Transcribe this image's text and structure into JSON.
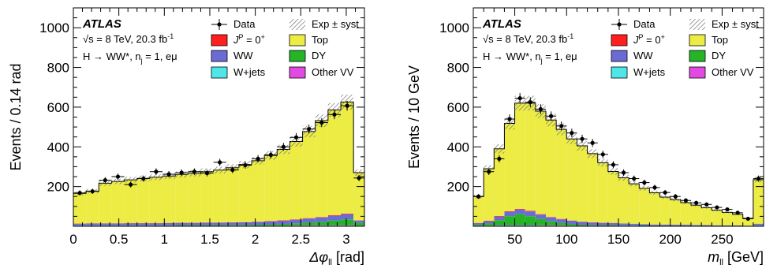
{
  "colors": {
    "data": "#000000",
    "top": "#ecec45",
    "ww": "#6b6bd6",
    "wjets": "#4ee6e6",
    "signal": "#ff1f1f",
    "dy": "#25b425",
    "othervv": "#e24ae2",
    "syst": "#7a7a7a"
  },
  "chart_data": [
    {
      "type": "histogram",
      "ylabel": "Events / 0.14 rad",
      "xlabel_main": "Δφ",
      "xlabel_sub": "ll",
      "xlabel_unit": " [rad]",
      "xlim": [
        0,
        3.2
      ],
      "ylim": [
        0,
        1100
      ],
      "xticks": [
        0,
        0.5,
        1,
        1.5,
        2,
        2.5,
        3
      ],
      "xtick_labels": [
        "0",
        "0.5",
        "1",
        "1.5",
        "2",
        "2.5",
        "3"
      ],
      "yticks": [
        200,
        400,
        600,
        800,
        1000
      ],
      "ytick_labels": [
        "200",
        "400",
        "600",
        "800",
        "1000"
      ],
      "grid": false,
      "legend_position": "top",
      "annotations": {
        "experiment": "ATLAS",
        "energy_prefix": "√s = 8 TeV, 20.3 fb",
        "energy_sup": "-1",
        "process_prefix": "H → WW*, n",
        "process_sub": "j",
        "process_suffix": " = 1, eμ"
      },
      "legend": {
        "data": "Data",
        "syst": "Exp ± syst",
        "signal_main": "J",
        "signal_sup1": "P",
        "signal_mid": " = 0",
        "signal_sup2": "+",
        "top": "Top",
        "ww": "WW",
        "dy": "DY",
        "wjets": "W+jets",
        "othervv": "Other VV"
      },
      "bin_edges": [
        0,
        0.14,
        0.28,
        0.42,
        0.56,
        0.7,
        0.84,
        0.98,
        1.12,
        1.26,
        1.4,
        1.54,
        1.68,
        1.82,
        1.96,
        2.1,
        2.24,
        2.38,
        2.52,
        2.66,
        2.8,
        2.94,
        3.08,
        3.2
      ],
      "stack_order": [
        "wjets",
        "othervv",
        "dy",
        "ww",
        "signal",
        "top"
      ],
      "series": [
        {
          "key": "wjets",
          "values": [
            2,
            2,
            2,
            2,
            2,
            2,
            2,
            2,
            2,
            2,
            2,
            2,
            2,
            2,
            2,
            3,
            3,
            3,
            3,
            3,
            3,
            3,
            2
          ]
        },
        {
          "key": "othervv",
          "values": [
            1,
            1,
            1,
            1,
            1,
            1,
            1,
            1,
            1,
            1,
            1,
            1,
            1,
            1,
            1,
            1,
            1,
            2,
            2,
            2,
            2,
            2,
            1
          ]
        },
        {
          "key": "dy",
          "values": [
            2,
            2,
            2,
            2,
            2,
            2,
            2,
            2,
            3,
            3,
            3,
            3,
            4,
            4,
            5,
            6,
            8,
            10,
            14,
            18,
            24,
            30,
            14
          ]
        },
        {
          "key": "ww",
          "values": [
            8,
            9,
            9,
            9,
            10,
            10,
            10,
            11,
            11,
            11,
            12,
            12,
            12,
            13,
            14,
            15,
            16,
            18,
            20,
            22,
            24,
            26,
            12
          ]
        },
        {
          "key": "signal",
          "values": [
            1,
            1,
            1,
            1,
            1,
            1,
            1,
            1,
            1,
            1,
            1,
            1,
            1,
            1,
            1,
            2,
            2,
            2,
            2,
            2,
            3,
            3,
            1
          ]
        },
        {
          "key": "top",
          "values": [
            152,
            162,
            202,
            211,
            218,
            225,
            231,
            236,
            243,
            249,
            256,
            264,
            275,
            290,
            307,
            330,
            357,
            392,
            436,
            485,
            530,
            562,
            240
          ]
        }
      ],
      "data_points": [
        168,
        176,
        232,
        250,
        210,
        240,
        275,
        262,
        270,
        275,
        268,
        322,
        284,
        308,
        340,
        360,
        400,
        448,
        490,
        522,
        563,
        607,
        243
      ],
      "syst_fraction": 0.06
    },
    {
      "type": "histogram",
      "ylabel": "Events / 10 GeV",
      "xlabel_main": "m",
      "xlabel_sub": "ll",
      "xlabel_unit": " [GeV]",
      "xlim": [
        10,
        290
      ],
      "ylim": [
        0,
        1100
      ],
      "xticks": [
        50,
        100,
        150,
        200,
        250
      ],
      "xtick_labels": [
        "50",
        "100",
        "150",
        "200",
        "250"
      ],
      "yticks": [
        200,
        400,
        600,
        800,
        1000
      ],
      "ytick_labels": [
        "200",
        "400",
        "600",
        "800",
        "1000"
      ],
      "grid": false,
      "legend_position": "top",
      "annotations": {
        "experiment": "ATLAS",
        "energy_prefix": "√s = 8 TeV, 20.3 fb",
        "energy_sup": "-1",
        "process_prefix": "H → WW*, n",
        "process_sub": "j",
        "process_suffix": " = 1, eμ"
      },
      "legend": {
        "data": "Data",
        "syst": "Exp ± syst",
        "signal_main": "J",
        "signal_sup1": "P",
        "signal_mid": " = 0",
        "signal_sup2": "+",
        "top": "Top",
        "ww": "WW",
        "dy": "DY",
        "wjets": "W+jets",
        "othervv": "Other VV"
      },
      "bin_edges": [
        10,
        20,
        30,
        40,
        50,
        60,
        70,
        80,
        90,
        100,
        110,
        120,
        130,
        140,
        150,
        160,
        170,
        180,
        190,
        200,
        210,
        220,
        230,
        240,
        250,
        260,
        270,
        280,
        290
      ],
      "stack_order": [
        "wjets",
        "othervv",
        "dy",
        "ww",
        "signal",
        "top"
      ],
      "series": [
        {
          "key": "wjets",
          "values": [
            2,
            3,
            4,
            4,
            4,
            4,
            3,
            3,
            3,
            3,
            2,
            2,
            2,
            2,
            2,
            2,
            1,
            1,
            1,
            1,
            1,
            1,
            1,
            1,
            1,
            1,
            1,
            2
          ]
        },
        {
          "key": "othervv",
          "values": [
            1,
            1,
            2,
            2,
            2,
            2,
            2,
            2,
            2,
            1,
            1,
            1,
            1,
            1,
            1,
            1,
            1,
            1,
            1,
            1,
            1,
            1,
            0,
            0,
            0,
            0,
            0,
            1
          ]
        },
        {
          "key": "dy",
          "values": [
            5,
            10,
            25,
            45,
            55,
            45,
            32,
            20,
            12,
            8,
            5,
            4,
            3,
            3,
            2,
            2,
            2,
            1,
            1,
            1,
            1,
            1,
            1,
            1,
            0,
            0,
            0,
            2
          ]
        },
        {
          "key": "ww",
          "values": [
            8,
            12,
            18,
            22,
            24,
            24,
            22,
            20,
            18,
            16,
            14,
            12,
            11,
            10,
            9,
            8,
            7,
            6,
            6,
            5,
            5,
            4,
            4,
            3,
            3,
            3,
            2,
            8
          ]
        },
        {
          "key": "signal",
          "values": [
            1,
            2,
            3,
            3,
            3,
            3,
            2,
            2,
            2,
            1,
            1,
            1,
            1,
            1,
            0,
            0,
            0,
            0,
            0,
            0,
            0,
            0,
            0,
            0,
            0,
            0,
            0,
            0
          ]
        },
        {
          "key": "top",
          "values": [
            133,
            262,
            338,
            442,
            532,
            542,
            519,
            488,
            451,
            411,
            382,
            346,
            302,
            259,
            230,
            201,
            180,
            160,
            138,
            126,
            111,
            99,
            88,
            76,
            66,
            56,
            37,
            222
          ]
        }
      ],
      "data_points": [
        150,
        275,
        340,
        540,
        645,
        625,
        590,
        555,
        505,
        470,
        440,
        420,
        362,
        310,
        270,
        240,
        220,
        195,
        170,
        150,
        130,
        118,
        110,
        95,
        85,
        68,
        38,
        240
      ],
      "syst_fraction": 0.06
    }
  ]
}
